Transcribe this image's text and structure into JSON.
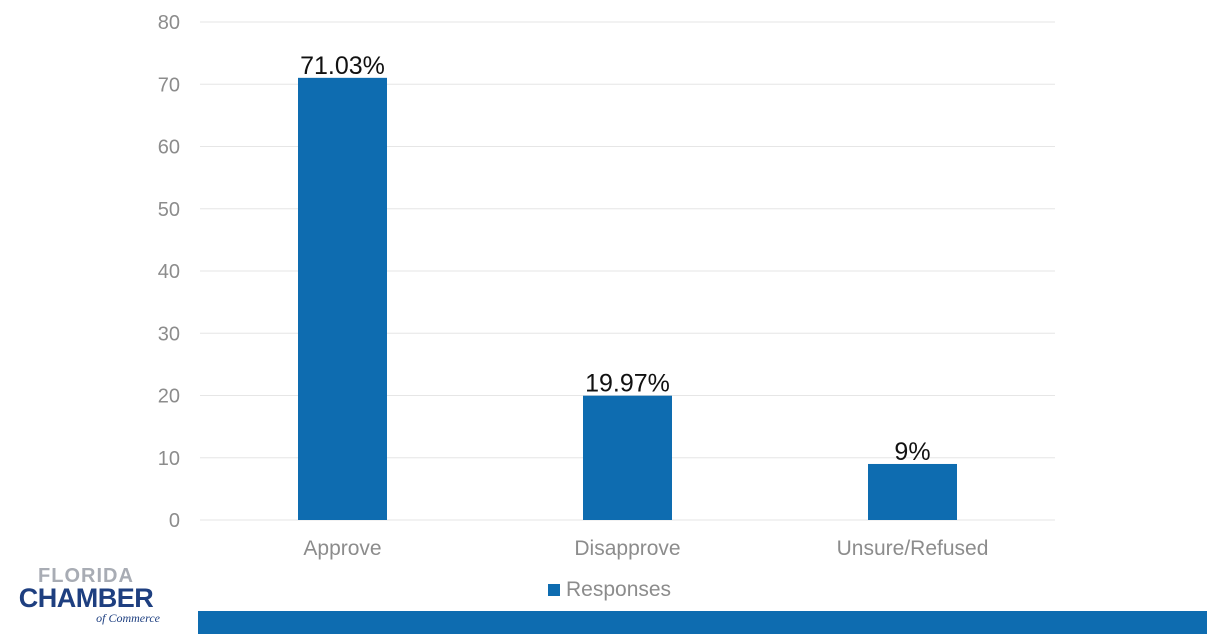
{
  "chart_data": {
    "type": "bar",
    "categories": [
      "Approve",
      "Disapprove",
      "Unsure/Refused"
    ],
    "values": [
      71.03,
      19.97,
      9
    ],
    "data_labels": [
      "71.03%",
      "19.97%",
      "9%"
    ],
    "series": [
      {
        "name": "Responses",
        "values": [
          71.03,
          19.97,
          9
        ]
      }
    ],
    "ylim": [
      0,
      80
    ],
    "yticks": [
      0,
      10,
      20,
      30,
      40,
      50,
      60,
      70,
      80
    ],
    "title": "",
    "xlabel": "",
    "ylabel": "",
    "grid": true,
    "legend_position": "bottom"
  },
  "legend": {
    "label": "Responses"
  },
  "logo": {
    "line1": "FLORIDA",
    "line2": "CHAMBER",
    "line3": "of Commerce"
  },
  "colors": {
    "bar": "#0e6cb0",
    "footer_bar": "#0e6cb0",
    "grid": "#e6e6e6",
    "axis_text": "#8c8c8c"
  }
}
